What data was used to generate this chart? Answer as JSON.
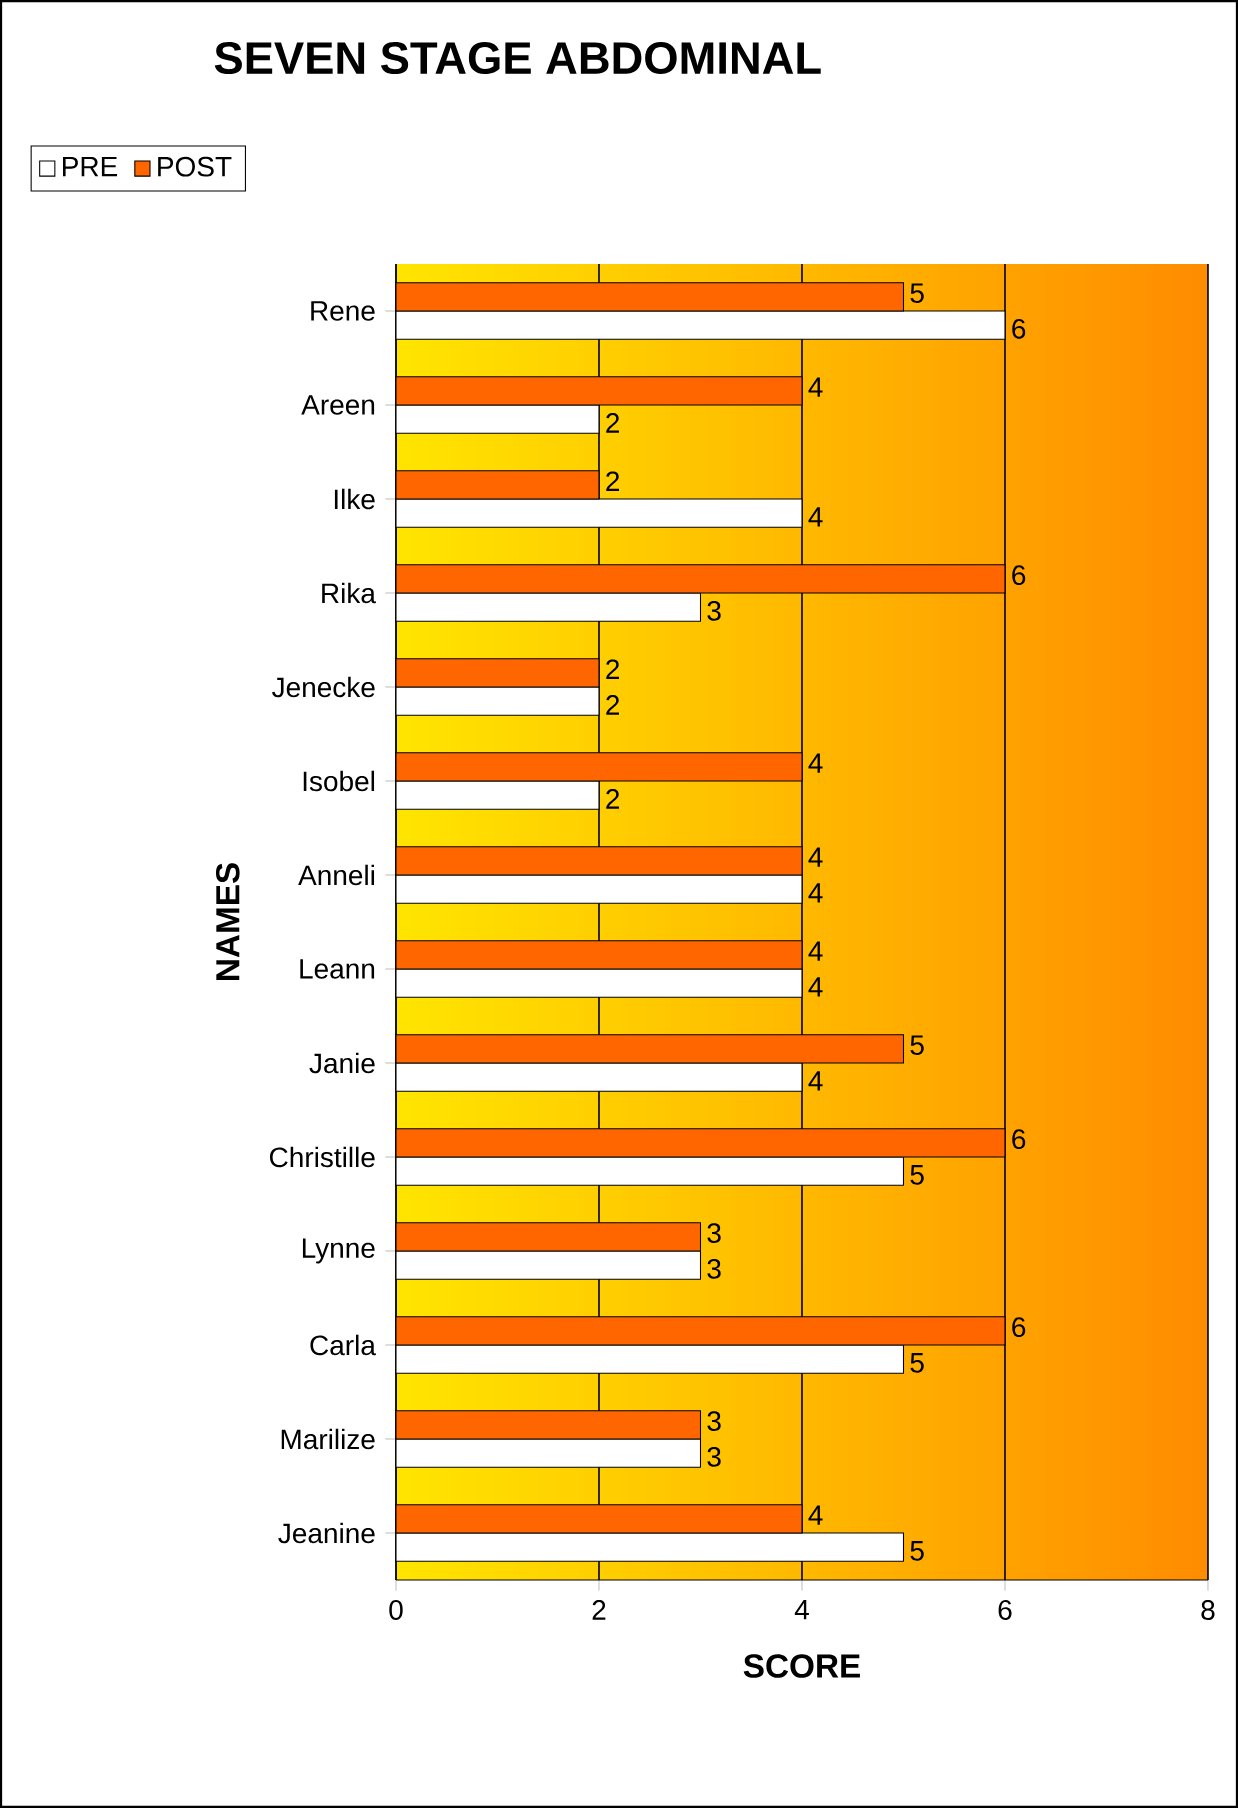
{
  "chart_data": {
    "type": "bar",
    "orientation": "horizontal",
    "title": "SEVEN STAGE ABDOMINAL",
    "xlabel": "SCORE",
    "ylabel": "NAMES",
    "categories": [
      "Rene",
      "Areen",
      "Ilke",
      "Rika",
      "Jenecke",
      "Isobel",
      "Anneli",
      "Leann",
      "Janie",
      "Christille",
      "Lynne",
      "Carla",
      "Marilize",
      "Jeanine"
    ],
    "series": [
      {
        "name": "PRE",
        "color": "#ffffff",
        "values": [
          6,
          2,
          4,
          3,
          2,
          2,
          4,
          4,
          4,
          5,
          3,
          5,
          3,
          5
        ]
      },
      {
        "name": "POST",
        "color": "#ff6600",
        "values": [
          5,
          4,
          2,
          6,
          2,
          4,
          4,
          4,
          5,
          6,
          3,
          6,
          3,
          4
        ]
      }
    ],
    "xlim": [
      0,
      8
    ],
    "xticks": [
      0,
      2,
      4,
      6,
      8
    ],
    "grid": "x",
    "legend": "top left",
    "data_labels": true
  }
}
